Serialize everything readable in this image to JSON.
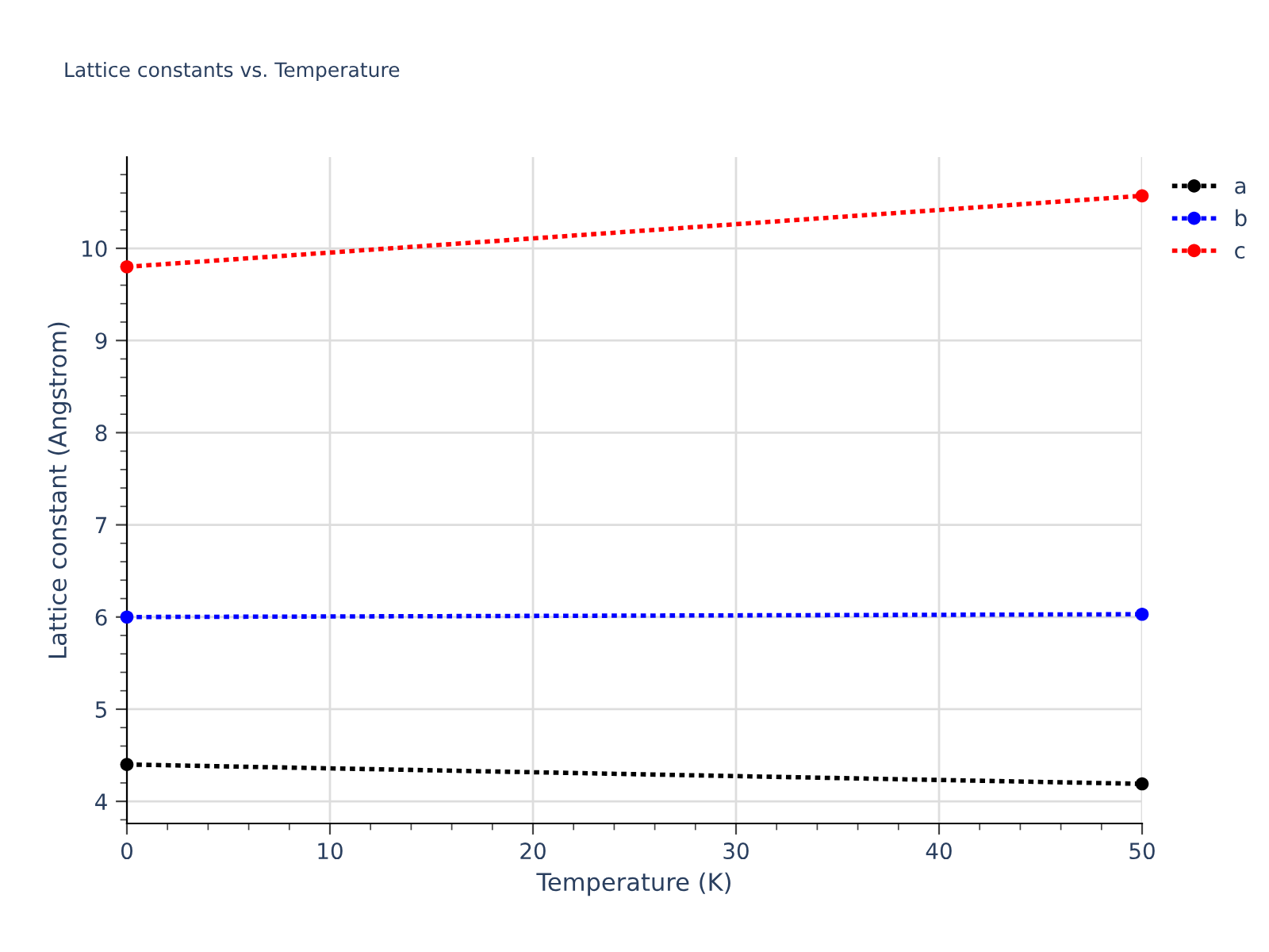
{
  "chart_data": {
    "type": "line",
    "title": "Lattice constants vs. Temperature",
    "xlabel": "Temperature (K)",
    "ylabel": "Lattice constant (Angstrom)",
    "x": [
      0,
      50
    ],
    "series": [
      {
        "name": "a",
        "color": "#000000",
        "values": [
          4.4,
          4.19
        ]
      },
      {
        "name": "b",
        "color": "#0000ff",
        "values": [
          6.0,
          6.03
        ]
      },
      {
        "name": "c",
        "color": "#ff0000",
        "values": [
          9.8,
          10.57
        ]
      }
    ],
    "xlim": [
      0,
      50
    ],
    "ylim": [
      3.76,
      10.99
    ],
    "xticks": [
      0,
      10,
      20,
      30,
      40,
      50
    ],
    "yticks": [
      4,
      5,
      6,
      7,
      8,
      9,
      10
    ],
    "grid": true,
    "legend": "top right",
    "marker": "circle",
    "line_style": "dotted"
  }
}
